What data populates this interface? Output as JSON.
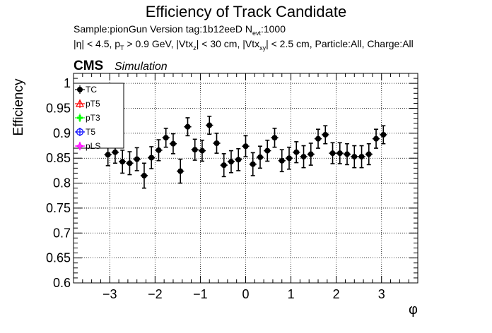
{
  "header": {
    "title": "Efficiency of Track Candidate",
    "info_line1": "Sample:pionGun   Version tag:1b12eeD  N",
    "info_line1_sub": "evt",
    "info_line1_end": ":1000",
    "info_line2_a": "|η| < 4.5, p",
    "info_line2_sub1": "T",
    "info_line2_b": " > 0.9 GeV, |Vtx",
    "info_line2_sub2": "z",
    "info_line2_c": "| < 30 cm, |Vtx",
    "info_line2_sub3": "xy",
    "info_line2_d": "| < 2.5 cm, Particle:All, Charge:All",
    "cms_label": "CMS",
    "simulation_label": "Simulation"
  },
  "colors": {
    "TC": "#000000",
    "pT5": "#ff0000",
    "pT3": "#00ff00",
    "T5": "#0000ff",
    "pLS": "#ff00ff"
  },
  "chart_data": {
    "type": "scatter",
    "xlabel": "φ",
    "ylabel": "Efficiency",
    "xlim": [
      -3.8,
      3.8
    ],
    "ylim": [
      0.6,
      1.02
    ],
    "grid": true,
    "legend_placement": "top-left",
    "xticks": [
      -3,
      -2,
      -1,
      0,
      1,
      2,
      3
    ],
    "xtick_labels": [
      "−3",
      "−2",
      "−1",
      "0",
      "1",
      "2",
      "3"
    ],
    "yticks": [
      0.6,
      0.65,
      0.7,
      0.75,
      0.8,
      0.85,
      0.9,
      0.95,
      1.0
    ],
    "ytick_labels": [
      "0.6",
      "0.65",
      "0.7",
      "0.75",
      "0.8",
      "0.85",
      "0.9",
      "0.95",
      "1"
    ],
    "series": [
      {
        "name": "TC",
        "x": [
          -3.04,
          -2.88,
          -2.72,
          -2.56,
          -2.4,
          -2.24,
          -2.08,
          -1.92,
          -1.76,
          -1.6,
          -1.44,
          -1.28,
          -1.12,
          -0.96,
          -0.8,
          -0.64,
          -0.48,
          -0.32,
          -0.16,
          0.0,
          0.16,
          0.32,
          0.48,
          0.64,
          0.8,
          0.96,
          1.12,
          1.28,
          1.44,
          1.6,
          1.76,
          1.92,
          2.08,
          2.24,
          2.4,
          2.56,
          2.72,
          2.88,
          3.04
        ],
        "y": [
          0.857,
          0.862,
          0.843,
          0.84,
          0.848,
          0.815,
          0.851,
          0.866,
          0.891,
          0.879,
          0.824,
          0.913,
          0.867,
          0.865,
          0.916,
          0.88,
          0.836,
          0.843,
          0.847,
          0.874,
          0.838,
          0.852,
          0.865,
          0.891,
          0.845,
          0.85,
          0.862,
          0.853,
          0.858,
          0.889,
          0.897,
          0.86,
          0.86,
          0.858,
          0.853,
          0.853,
          0.858,
          0.889,
          0.897
        ],
        "yerr": [
          0.022,
          0.022,
          0.023,
          0.023,
          0.023,
          0.025,
          0.022,
          0.021,
          0.019,
          0.02,
          0.024,
          0.018,
          0.021,
          0.021,
          0.018,
          0.02,
          0.023,
          0.022,
          0.022,
          0.021,
          0.023,
          0.022,
          0.021,
          0.019,
          0.022,
          0.022,
          0.021,
          0.022,
          0.022,
          0.019,
          0.018,
          0.021,
          0.021,
          0.021,
          0.022,
          0.022,
          0.021,
          0.019,
          0.018
        ],
        "xerr": 0.08
      },
      {
        "name": "pT5",
        "x": [],
        "y": []
      },
      {
        "name": "pT3",
        "x": [],
        "y": []
      },
      {
        "name": "T5",
        "x": [],
        "y": []
      },
      {
        "name": "pLS",
        "x": [],
        "y": []
      }
    ]
  }
}
